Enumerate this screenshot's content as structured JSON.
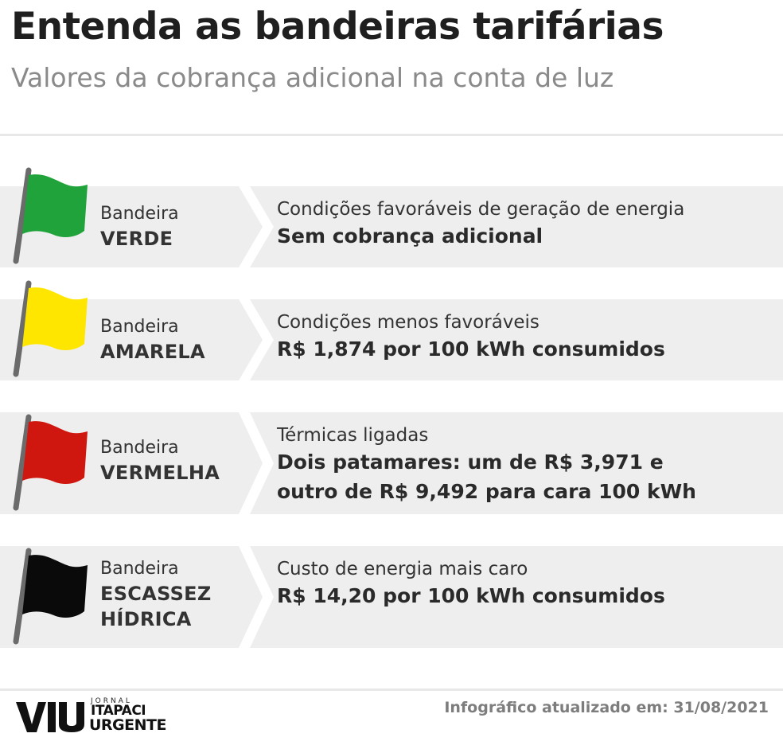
{
  "header": {
    "title": "Entenda as bandeiras tarifárias",
    "subtitle": "Valores da cobrança adicional na conta de luz"
  },
  "flags": [
    {
      "label_word": "Bandeira",
      "name": "VERDE",
      "color": "#1fa33a",
      "condition": "Condições favoráveis de geração de energia",
      "value": "Sem cobrança adicional"
    },
    {
      "label_word": "Bandeira",
      "name": "AMARELA",
      "color": "#ffe600",
      "condition": "Condições menos favoráveis",
      "value": "R$ 1,874 por 100 kWh consumidos"
    },
    {
      "label_word": "Bandeira",
      "name": "VERMELHA",
      "color": "#d0170f",
      "condition": "Térmicas ligadas",
      "value_line1": "Dois patamares: um de R$ 3,971 e",
      "value_line2": "outro de R$ 9,492 para cara 100 kWh"
    },
    {
      "label_word": "Bandeira",
      "name_line1": "ESCASSEZ",
      "name_line2": "HÍDRICA",
      "color": "#0a0a0a",
      "condition": "Custo de energia mais caro",
      "value": "R$ 14,20 por 100 kWh consumidos"
    }
  ],
  "footer": {
    "updated": "Infográfico atualizado em: 31/08/2021",
    "logo_small": "JORNAL",
    "logo_mid": "ITAPACI",
    "logo_big": "URGENTE"
  },
  "colors": {
    "band": "#eeeeee",
    "pole": "#6b6b6b",
    "title": "#1f1f1f",
    "subtitle": "#8a8a8a"
  }
}
